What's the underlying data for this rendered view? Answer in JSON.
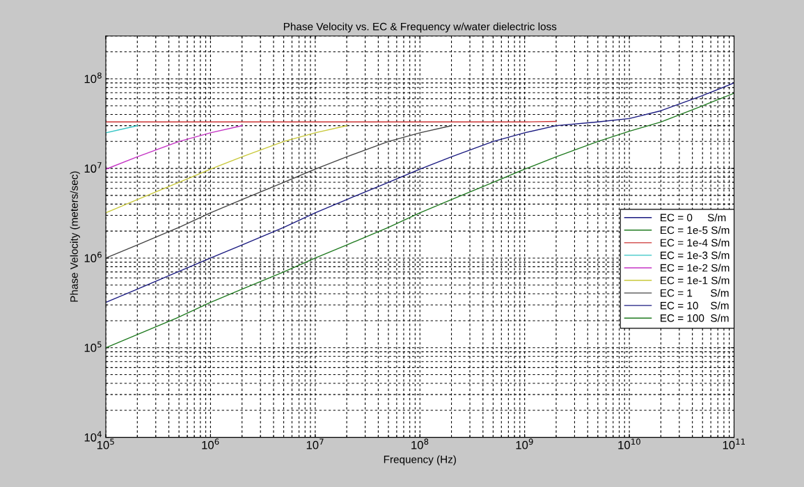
{
  "chart_data": {
    "type": "line",
    "title": "Phase Velocity vs. EC & Frequency w/water dielectric loss",
    "xlabel": "Frequency (Hz)",
    "ylabel": "Phase Velocity (meters/sec)",
    "log": "xy",
    "grid": true,
    "legend": "right",
    "line_style": "solid",
    "marker": "none",
    "xlim": [
      100000,
      100000000000
    ],
    "ylim": [
      10000,
      300000000
    ],
    "xticks": [
      {
        "value": 100000,
        "label": "10$^{5}$"
      },
      {
        "value": 1000000,
        "label": "10$^{6}$"
      },
      {
        "value": 10000000,
        "label": "10$^{7}$"
      },
      {
        "value": 100000000,
        "label": "10$^{8}$"
      },
      {
        "value": 1000000000,
        "label": "10$^{9}$"
      },
      {
        "value": 10000000000,
        "label": "10$^{10}$"
      },
      {
        "value": 100000000000,
        "label": "10$^{11}$"
      }
    ],
    "yticks": [
      {
        "value": 10000,
        "label": "10$^{4}$"
      },
      {
        "value": 100000,
        "label": "10$^{5}$"
      },
      {
        "value": 1000000,
        "label": "10$^{6}$"
      },
      {
        "value": 10000000,
        "label": "10$^{7}$"
      },
      {
        "value": 100000000,
        "label": "10$^{8}$"
      }
    ],
    "x": [
      100000,
      200000,
      500000,
      1000000,
      2000000,
      5000000,
      10000000,
      20000000,
      50000000,
      100000000,
      200000000,
      500000000,
      1000000000,
      2000000000,
      5000000000,
      10000000000,
      20000000000,
      50000000000,
      100000000000
    ],
    "series": [
      {
        "name": "EC = 0     S/m",
        "color": "#1a1a80",
        "values": [
          null,
          null,
          null,
          null,
          null,
          null,
          null,
          null,
          null,
          null,
          null,
          null,
          null,
          null,
          null,
          null,
          null,
          null,
          null
        ]
      },
      {
        "name": "EC = 1e-5 S/m",
        "color": "#1f7a1f",
        "values": [
          null,
          null,
          null,
          null,
          null,
          null,
          null,
          null,
          null,
          null,
          null,
          null,
          null,
          null,
          null,
          null,
          null,
          null,
          null
        ]
      },
      {
        "name": "EC = 1e-4 S/m",
        "color": "#cc3333",
        "values": [
          33000000,
          33000000,
          33000000,
          33000000,
          33000000,
          33000000,
          33000000,
          33000000,
          33000000,
          33000000,
          33000000,
          33000000,
          33000000,
          33500000,
          null,
          null,
          null,
          null,
          null
        ]
      },
      {
        "name": "EC = 1e-3 S/m",
        "color": "#33c4c4",
        "values": [
          25000000,
          30000000,
          null,
          null,
          null,
          null,
          null,
          null,
          null,
          null,
          null,
          null,
          null,
          null,
          null,
          null,
          null,
          null,
          null
        ]
      },
      {
        "name": "EC = 1e-2 S/m",
        "color": "#c433c4",
        "values": [
          9800000,
          13500000,
          20000000,
          25000000,
          30000000,
          null,
          null,
          null,
          null,
          null,
          null,
          null,
          null,
          null,
          null,
          null,
          null,
          null,
          null
        ]
      },
      {
        "name": "EC = 1e-1 S/m",
        "color": "#c8c83a",
        "values": [
          3200000,
          4500000,
          7000000,
          9800000,
          13500000,
          20000000,
          25000000,
          30000000,
          null,
          null,
          null,
          null,
          null,
          null,
          null,
          null,
          null,
          null,
          null
        ]
      },
      {
        "name": "EC = 1      S/m",
        "color": "#444444",
        "values": [
          1000000,
          1400000,
          2200000,
          3200000,
          4500000,
          7000000,
          9800000,
          13500000,
          20000000,
          25000000,
          30000000,
          null,
          null,
          null,
          null,
          null,
          null,
          null,
          null
        ]
      },
      {
        "name": "EC = 10    S/m",
        "color": "#1a1a80",
        "values": [
          320000,
          450000,
          710000,
          1000000,
          1400000,
          2200000,
          3200000,
          4500000,
          7000000,
          9800000,
          13500000,
          20000000,
          25000000,
          30000000,
          33000000,
          36000000,
          44000000,
          65000000,
          90000000
        ]
      },
      {
        "name": "EC = 100  S/m",
        "color": "#1f7a1f",
        "values": [
          100000,
          140000,
          220000,
          320000,
          450000,
          700000,
          1000000,
          1400000,
          2200000,
          3200000,
          4500000,
          7000000,
          9800000,
          13500000,
          20000000,
          26000000,
          33000000,
          50000000,
          69000000
        ]
      }
    ]
  }
}
